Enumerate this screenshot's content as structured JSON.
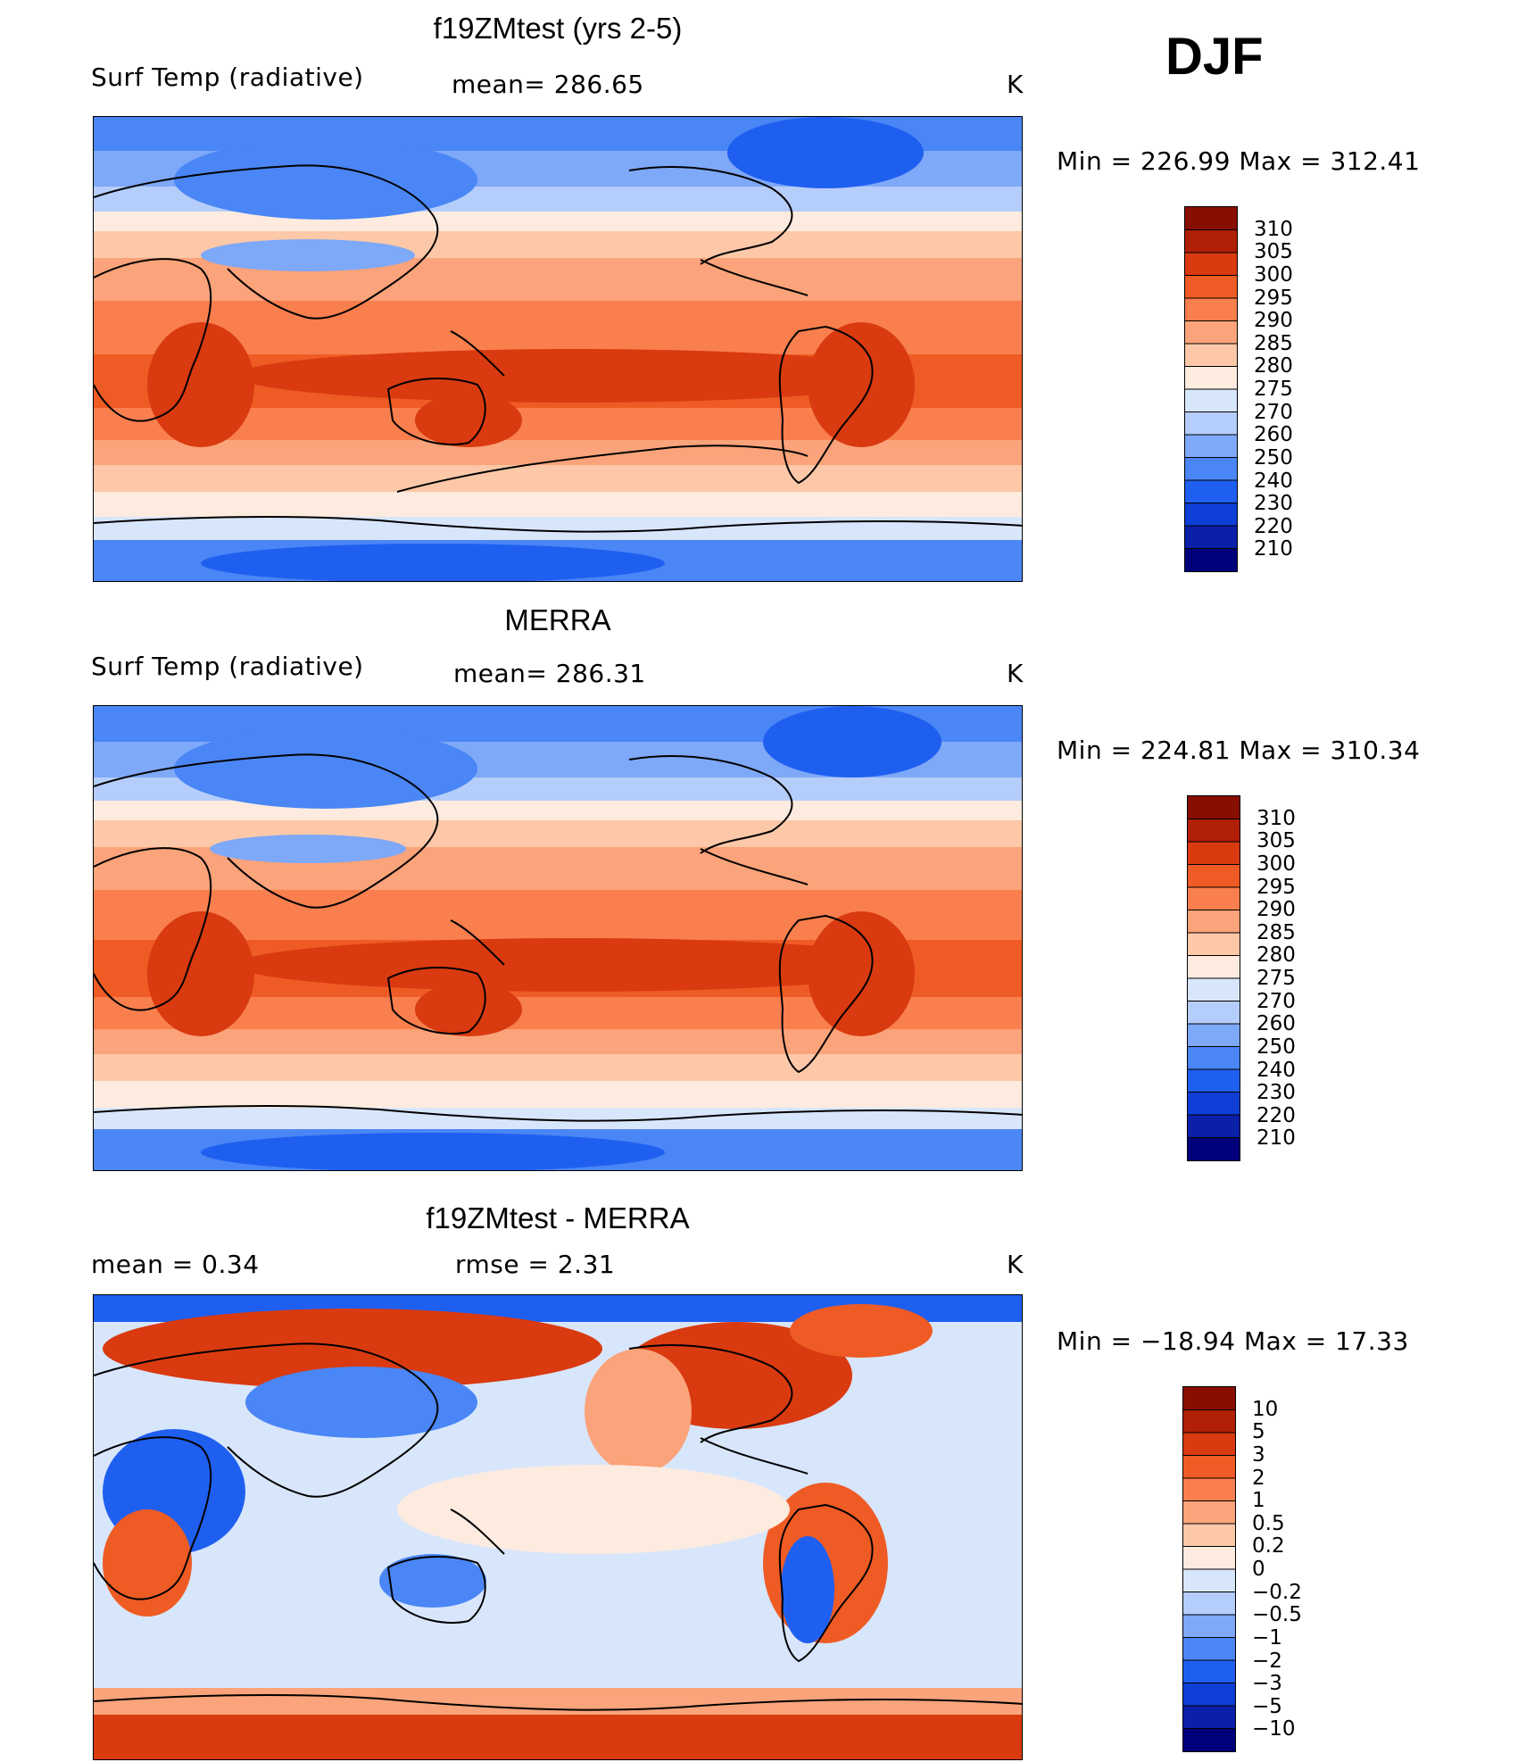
{
  "season": "DJF",
  "units": "K",
  "palette_temp": [
    "#00007a",
    "#0a20a8",
    "#0e3fd6",
    "#1f5ff0",
    "#4a86f5",
    "#7ea8f8",
    "#b5cdfa",
    "#d8e6fb",
    "#fdebe0",
    "#fcc8a8",
    "#fba37a",
    "#f97f4e",
    "#ef5b24",
    "#d93a10",
    "#b01f06",
    "#870e00"
  ],
  "palette_diff": [
    "#00007a",
    "#0a20a8",
    "#0e3fd6",
    "#1f5ff0",
    "#4a86f5",
    "#7ea8f8",
    "#b5cdfa",
    "#d8e6fb",
    "#fdebe0",
    "#fcc8a8",
    "#fba37a",
    "#f97f4e",
    "#ef5b24",
    "#d93a10",
    "#b01f06",
    "#870e00"
  ],
  "panels": [
    {
      "id": "model",
      "title": "f19ZMtest (yrs 2-5)",
      "left_label": "Surf Temp (radiative)",
      "center_label": "mean=  286.65",
      "units": "K",
      "minmax": "Min  =  226.99  Max  =  312.41",
      "colorbar_labels": [
        "310",
        "305",
        "300",
        "295",
        "290",
        "285",
        "280",
        "275",
        "270",
        "260",
        "250",
        "240",
        "230",
        "220",
        "210"
      ],
      "palette": "temp"
    },
    {
      "id": "obs",
      "title": "MERRA",
      "left_label": "Surf Temp (radiative)",
      "center_label": "mean=  286.31",
      "units": "K",
      "minmax": "Min  =  224.81  Max  =  310.34",
      "colorbar_labels": [
        "310",
        "305",
        "300",
        "295",
        "290",
        "285",
        "280",
        "275",
        "270",
        "260",
        "250",
        "240",
        "230",
        "220",
        "210"
      ],
      "palette": "temp"
    },
    {
      "id": "diff",
      "title": "f19ZMtest - MERRA",
      "left_label": "mean  =     0.34",
      "center_label": "rmse  =     2.31",
      "units": "K",
      "minmax": "Min  =  −18.94  Max  =    17.33",
      "colorbar_labels": [
        "10",
        "5",
        "3",
        "2",
        "1",
        "0.5",
        "0.2",
        "0",
        "−0.2",
        "−0.5",
        "−1",
        "−2",
        "−3",
        "−5",
        "−10"
      ],
      "palette": "diff"
    }
  ]
}
